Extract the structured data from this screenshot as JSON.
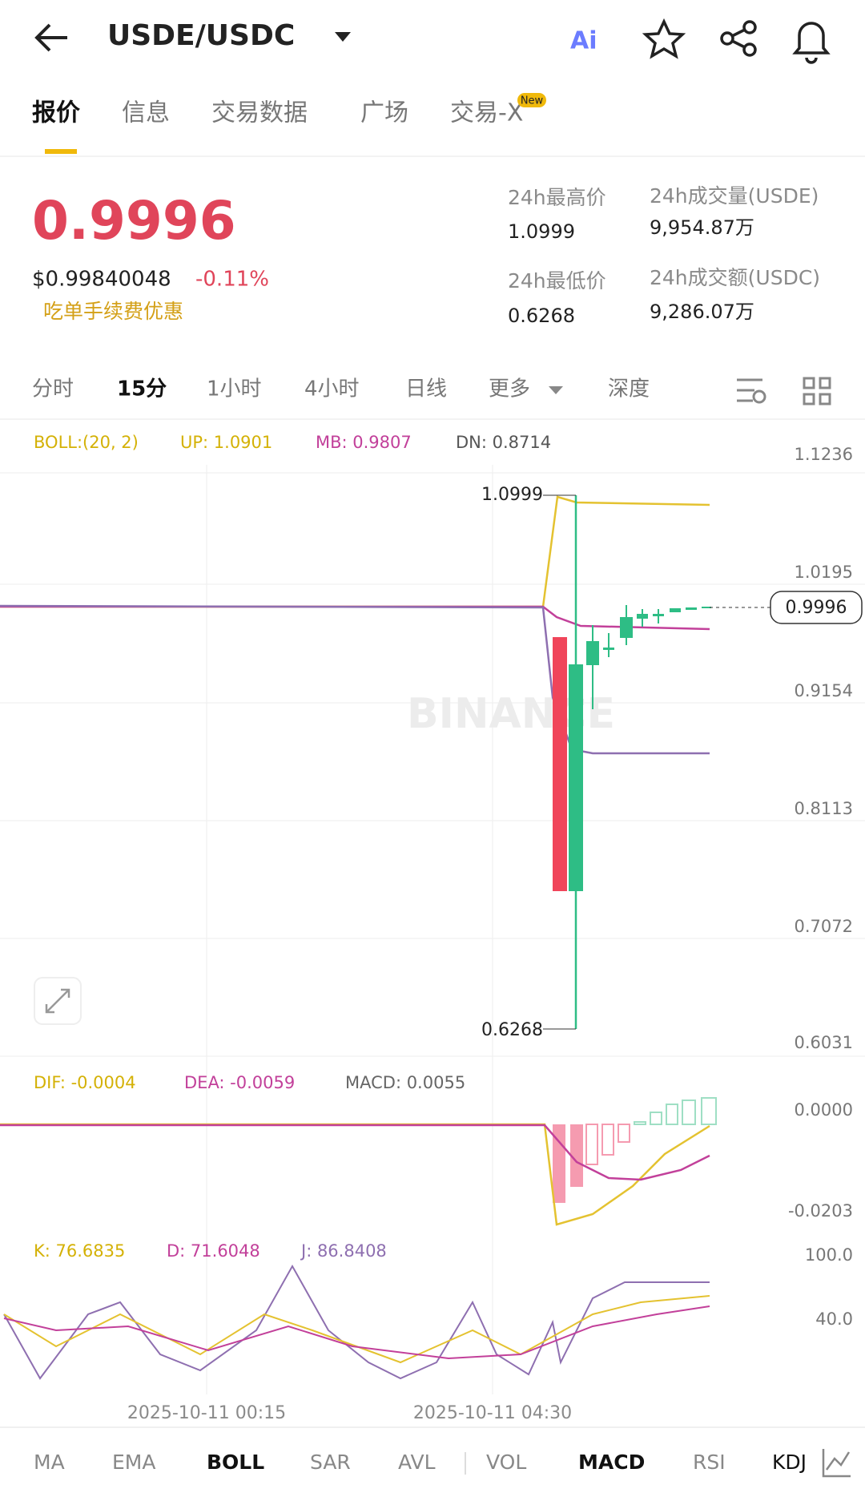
{
  "header": {
    "title": "USDE/USDC",
    "ai": "Ai"
  },
  "tabs": [
    "报价",
    "信息",
    "交易数据",
    "广场",
    "交易-X"
  ],
  "tab_badge": "New",
  "price": {
    "last": "0.9996",
    "usd": "$0.99840048",
    "change": "-0.11%",
    "promo": "吃单手续费优惠"
  },
  "stats": [
    {
      "label": "24h最高价",
      "value": "1.0999"
    },
    {
      "label": "24h成交量(USDE)",
      "value": "9,954.87万"
    },
    {
      "label": "24h最低价",
      "value": "0.6268"
    },
    {
      "label": "24h成交额(USDC)",
      "value": "9,286.07万"
    }
  ],
  "intervals": [
    "分时",
    "15分",
    "1小时",
    "4小时",
    "日线",
    "更多",
    "深度"
  ],
  "main_chart": {
    "indicator": "BOLL:(20, 2)",
    "up": "UP: 1.0901",
    "mb": "MB: 0.9807",
    "dn": "DN: 0.8714",
    "yticks": [
      "1.1236",
      "1.0195",
      "0.9154",
      "0.8113",
      "0.7072",
      "0.6031"
    ],
    "last_price": "0.9996",
    "high_label": "1.0999",
    "low_label": "0.6268",
    "watermark": "BINANCE"
  },
  "macd": {
    "dif": "DIF: -0.0004",
    "dea": "DEA: -0.0059",
    "macd": "MACD: 0.0055",
    "yticks": [
      "0.0000",
      "-0.0203"
    ]
  },
  "kdj": {
    "k": "K: 76.6835",
    "d": "D: 71.6048",
    "j": "J: 86.8408",
    "yticks": [
      "100.0",
      "40.0"
    ]
  },
  "time_labels": [
    "2025-10-11 00:15",
    "2025-10-11 04:30"
  ],
  "indicator_tabs": [
    "MA",
    "EMA",
    "BOLL",
    "SAR",
    "AVL",
    "VOL",
    "MACD",
    "RSI",
    "KDJ"
  ]
}
